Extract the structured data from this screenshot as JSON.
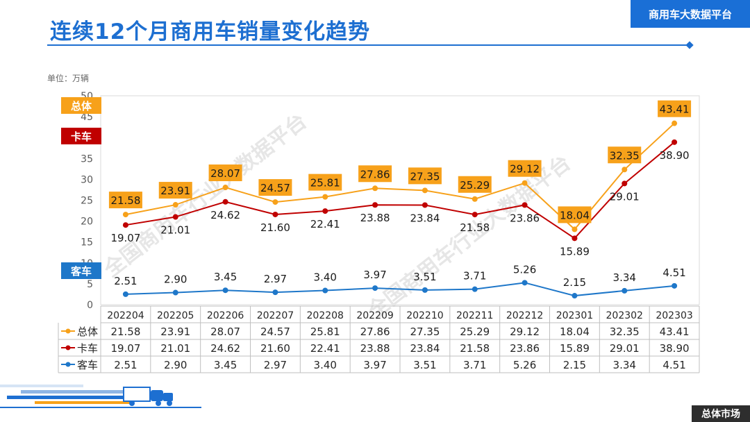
{
  "header": {
    "title": "连续12个月商用车销量变化趋势",
    "brand": "商用车大数据平台"
  },
  "footer": {
    "section": "总体市场"
  },
  "watermark": "全国商用车行业大数据平台",
  "colors": {
    "accent": "#1d6fd1",
    "total": "#f7a11a",
    "truck": "#c00000",
    "bus": "#1e77c9"
  },
  "chart_data": {
    "type": "line",
    "unit_label": "单位：万辆",
    "categories": [
      "202204",
      "202205",
      "202206",
      "202207",
      "202208",
      "202209",
      "202210",
      "202211",
      "202212",
      "202301",
      "202302",
      "202303"
    ],
    "y_ticks": [
      0,
      5,
      10,
      15,
      20,
      25,
      30,
      35,
      40,
      45,
      50
    ],
    "ylim": [
      0,
      50
    ],
    "series": [
      {
        "name": "总体",
        "key": "total",
        "color": "#f7a11a",
        "values": [
          21.58,
          23.91,
          28.07,
          24.57,
          25.81,
          27.86,
          27.35,
          25.29,
          29.12,
          18.04,
          32.35,
          43.41
        ]
      },
      {
        "name": "卡车",
        "key": "truck",
        "color": "#c00000",
        "values": [
          19.07,
          21.01,
          24.62,
          21.6,
          22.41,
          23.88,
          23.84,
          21.58,
          23.86,
          15.89,
          29.01,
          38.9
        ]
      },
      {
        "name": "客车",
        "key": "bus",
        "color": "#1e77c9",
        "values": [
          2.51,
          2.9,
          3.45,
          2.97,
          3.4,
          3.97,
          3.51,
          3.71,
          5.26,
          2.15,
          3.34,
          4.51
        ]
      }
    ],
    "value_labels": {
      "total": [
        "21.58",
        "23.91",
        "28.07",
        "24.57",
        "25.81",
        "27.86",
        "27.35",
        "25.29",
        "29.12",
        "18.04",
        "32.35",
        "43.41"
      ],
      "truck": [
        "19.07",
        "21.01",
        "24.62",
        "21.60",
        "22.41",
        "23.88",
        "23.84",
        "21.58",
        "23.86",
        "15.89",
        "29.01",
        "38.90"
      ],
      "bus": [
        "2.51",
        "2.90",
        "3.45",
        "2.97",
        "3.40",
        "3.97",
        "3.51",
        "3.71",
        "5.26",
        "2.15",
        "3.34",
        "4.51"
      ]
    },
    "series_tags": [
      "总体",
      "卡车",
      "客车"
    ]
  }
}
